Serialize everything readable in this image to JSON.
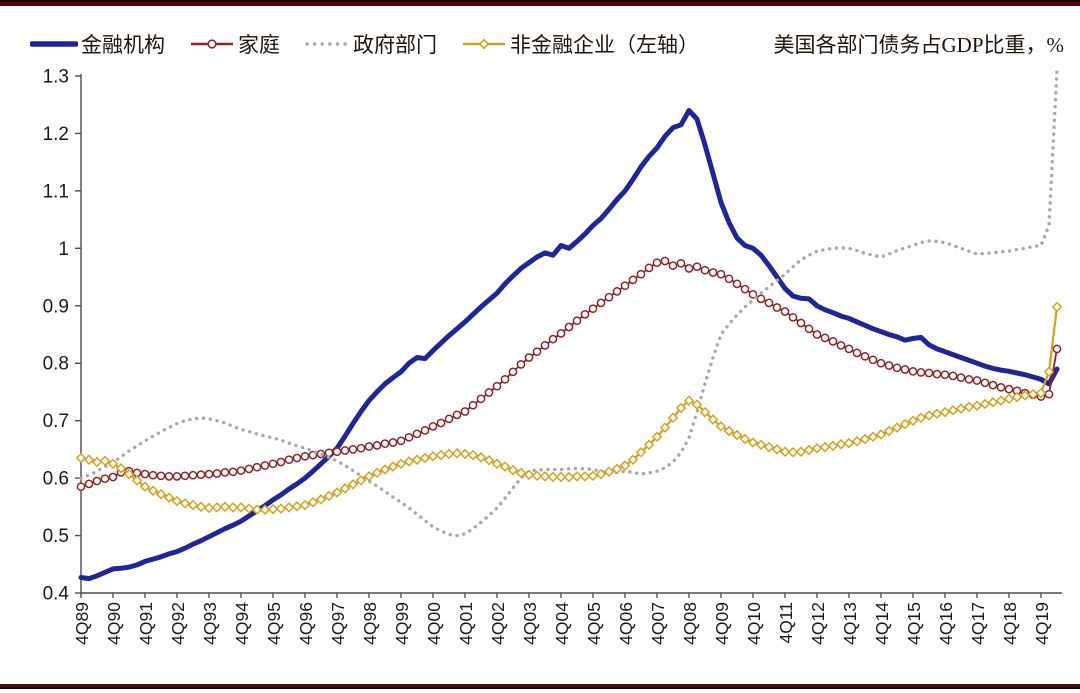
{
  "title": "美国各部门债务占GDP比重，%",
  "chart_data": {
    "type": "line",
    "title": "美国各部门债务占GDP比重，%",
    "x_frequency": "quarterly",
    "x_start": "4Q89",
    "x_end": "2Q20",
    "x_tick_labels": [
      "4Q89",
      "4Q90",
      "4Q91",
      "4Q92",
      "4Q93",
      "4Q94",
      "4Q95",
      "4Q96",
      "4Q97",
      "4Q98",
      "4Q99",
      "4Q00",
      "4Q01",
      "4Q02",
      "4Q03",
      "4Q04",
      "4Q05",
      "4Q06",
      "4Q07",
      "4Q08",
      "4Q09",
      "4Q10",
      "4Q11",
      "4Q12",
      "4Q13",
      "4Q14",
      "4Q15",
      "4Q16",
      "4Q17",
      "4Q18",
      "4Q19"
    ],
    "ylim": [
      0.4,
      1.3
    ],
    "y_ticks": [
      0.4,
      0.5,
      0.6,
      0.7,
      0.8,
      0.9,
      1,
      1.1,
      1.2,
      1.3
    ],
    "y_tick_labels": [
      "0.4",
      "0.5",
      "0.6",
      "0.7",
      "0.8",
      "0.9",
      "1",
      "1.1",
      "1.2",
      "1.3"
    ],
    "grid": false,
    "legend_position": "top",
    "axis_color": "#4d4d4d",
    "label_color": "#1a1a1a",
    "series": [
      {
        "name": "金融机构",
        "color": "#1f2698",
        "line_style": "solid",
        "line_width": 5,
        "marker": "none",
        "values": [
          0.427,
          0.425,
          0.43,
          0.436,
          0.442,
          0.443,
          0.445,
          0.449,
          0.455,
          0.459,
          0.463,
          0.468,
          0.472,
          0.478,
          0.485,
          0.491,
          0.498,
          0.505,
          0.512,
          0.518,
          0.525,
          0.534,
          0.543,
          0.552,
          0.562,
          0.571,
          0.581,
          0.59,
          0.6,
          0.612,
          0.625,
          0.638,
          0.652,
          0.673,
          0.695,
          0.716,
          0.735,
          0.75,
          0.764,
          0.775,
          0.785,
          0.8,
          0.81,
          0.808,
          0.822,
          0.835,
          0.848,
          0.86,
          0.872,
          0.885,
          0.898,
          0.91,
          0.922,
          0.938,
          0.952,
          0.965,
          0.975,
          0.985,
          0.992,
          0.988,
          1.005,
          1.0,
          1.012,
          1.025,
          1.04,
          1.052,
          1.068,
          1.085,
          1.1,
          1.12,
          1.142,
          1.16,
          1.175,
          1.195,
          1.21,
          1.215,
          1.24,
          1.225,
          1.18,
          1.13,
          1.08,
          1.045,
          1.018,
          1.005,
          1.0,
          0.988,
          0.97,
          0.95,
          0.93,
          0.917,
          0.913,
          0.912,
          0.9,
          0.893,
          0.888,
          0.882,
          0.878,
          0.872,
          0.866,
          0.86,
          0.855,
          0.85,
          0.846,
          0.84,
          0.843,
          0.845,
          0.832,
          0.825,
          0.82,
          0.815,
          0.81,
          0.805,
          0.8,
          0.795,
          0.791,
          0.788,
          0.786,
          0.783,
          0.78,
          0.776,
          0.772,
          0.764,
          0.79
        ]
      },
      {
        "name": "家庭",
        "color": "#8f2323",
        "line_style": "solid",
        "line_width": 1.8,
        "marker": "open-circle",
        "values": [
          0.585,
          0.59,
          0.595,
          0.599,
          0.602,
          0.61,
          0.612,
          0.609,
          0.607,
          0.605,
          0.604,
          0.603,
          0.603,
          0.604,
          0.605,
          0.606,
          0.607,
          0.608,
          0.61,
          0.611,
          0.613,
          0.616,
          0.619,
          0.622,
          0.625,
          0.628,
          0.632,
          0.635,
          0.638,
          0.64,
          0.642,
          0.644,
          0.646,
          0.648,
          0.65,
          0.652,
          0.655,
          0.657,
          0.66,
          0.662,
          0.665,
          0.671,
          0.677,
          0.683,
          0.69,
          0.696,
          0.703,
          0.71,
          0.716,
          0.727,
          0.738,
          0.749,
          0.76,
          0.772,
          0.785,
          0.798,
          0.81,
          0.82,
          0.831,
          0.842,
          0.852,
          0.863,
          0.874,
          0.885,
          0.895,
          0.905,
          0.915,
          0.925,
          0.935,
          0.945,
          0.955,
          0.966,
          0.975,
          0.978,
          0.97,
          0.974,
          0.965,
          0.968,
          0.962,
          0.958,
          0.955,
          0.947,
          0.938,
          0.929,
          0.92,
          0.912,
          0.905,
          0.897,
          0.89,
          0.88,
          0.87,
          0.86,
          0.85,
          0.844,
          0.838,
          0.831,
          0.825,
          0.818,
          0.812,
          0.806,
          0.8,
          0.796,
          0.792,
          0.789,
          0.786,
          0.784,
          0.783,
          0.781,
          0.78,
          0.778,
          0.775,
          0.772,
          0.77,
          0.766,
          0.762,
          0.758,
          0.755,
          0.752,
          0.748,
          0.745,
          0.742,
          0.746,
          0.825
        ]
      },
      {
        "name": "政府部门",
        "color": "#a8a8a8",
        "line_style": "dotted",
        "line_width": 3.4,
        "marker": "none",
        "values": [
          0.6,
          0.605,
          0.612,
          0.62,
          0.627,
          0.637,
          0.647,
          0.656,
          0.665,
          0.673,
          0.681,
          0.688,
          0.695,
          0.7,
          0.703,
          0.705,
          0.703,
          0.7,
          0.696,
          0.69,
          0.685,
          0.681,
          0.677,
          0.673,
          0.67,
          0.666,
          0.661,
          0.656,
          0.652,
          0.647,
          0.642,
          0.636,
          0.63,
          0.622,
          0.613,
          0.604,
          0.595,
          0.586,
          0.577,
          0.567,
          0.558,
          0.548,
          0.537,
          0.526,
          0.515,
          0.508,
          0.502,
          0.5,
          0.503,
          0.512,
          0.523,
          0.535,
          0.548,
          0.565,
          0.583,
          0.6,
          0.612,
          0.614,
          0.615,
          0.615,
          0.615,
          0.616,
          0.617,
          0.616,
          0.615,
          0.612,
          0.608,
          0.61,
          0.612,
          0.61,
          0.607,
          0.609,
          0.612,
          0.618,
          0.628,
          0.645,
          0.67,
          0.715,
          0.765,
          0.81,
          0.85,
          0.868,
          0.884,
          0.898,
          0.91,
          0.922,
          0.933,
          0.944,
          0.955,
          0.968,
          0.98,
          0.988,
          0.995,
          0.998,
          1.0,
          1.001,
          1.0,
          0.996,
          0.991,
          0.988,
          0.985,
          0.99,
          0.996,
          1.001,
          1.005,
          1.01,
          1.013,
          1.012,
          1.01,
          1.005,
          1.0,
          0.995,
          0.99,
          0.991,
          0.992,
          0.994,
          0.995,
          0.998,
          1.0,
          1.003,
          1.005,
          1.04,
          1.31
        ]
      },
      {
        "name": "非金融企业（左轴）",
        "color": "#d6a11c",
        "line_style": "solid",
        "line_width": 2.2,
        "marker": "open-diamond",
        "values": [
          0.635,
          0.632,
          0.628,
          0.63,
          0.625,
          0.617,
          0.607,
          0.596,
          0.585,
          0.578,
          0.572,
          0.566,
          0.56,
          0.556,
          0.553,
          0.55,
          0.548,
          0.549,
          0.55,
          0.549,
          0.549,
          0.547,
          0.545,
          0.545,
          0.546,
          0.547,
          0.549,
          0.551,
          0.553,
          0.558,
          0.563,
          0.569,
          0.575,
          0.582,
          0.589,
          0.596,
          0.603,
          0.609,
          0.615,
          0.62,
          0.625,
          0.629,
          0.632,
          0.635,
          0.638,
          0.64,
          0.642,
          0.643,
          0.642,
          0.64,
          0.636,
          0.631,
          0.625,
          0.62,
          0.614,
          0.609,
          0.606,
          0.604,
          0.603,
          0.602,
          0.602,
          0.602,
          0.603,
          0.603,
          0.604,
          0.607,
          0.611,
          0.616,
          0.622,
          0.632,
          0.645,
          0.658,
          0.672,
          0.688,
          0.705,
          0.722,
          0.735,
          0.728,
          0.715,
          0.702,
          0.69,
          0.682,
          0.675,
          0.668,
          0.662,
          0.658,
          0.654,
          0.65,
          0.646,
          0.645,
          0.646,
          0.649,
          0.652,
          0.654,
          0.656,
          0.659,
          0.661,
          0.664,
          0.668,
          0.672,
          0.676,
          0.682,
          0.688,
          0.694,
          0.7,
          0.705,
          0.709,
          0.712,
          0.715,
          0.718,
          0.721,
          0.724,
          0.726,
          0.729,
          0.732,
          0.735,
          0.738,
          0.741,
          0.744,
          0.746,
          0.748,
          0.785,
          0.898
        ]
      }
    ]
  },
  "frame": {
    "rule_color": "#55090f",
    "background": "#ffffff"
  }
}
